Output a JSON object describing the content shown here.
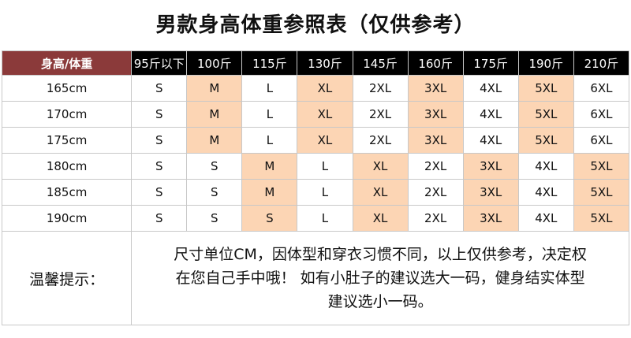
{
  "title": "男款身高体重参照表（仅供参考）",
  "table": {
    "header": [
      "身高/体重",
      "95斤以下",
      "100斤",
      "115斤",
      "130斤",
      "145斤",
      "160斤",
      "175斤",
      "190斤",
      "210斤"
    ],
    "rows": [
      [
        "165cm",
        "S",
        "M",
        "L",
        "XL",
        "2XL",
        "3XL",
        "4XL",
        "5XL",
        "6XL"
      ],
      [
        "170cm",
        "S",
        "M",
        "L",
        "XL",
        "2XL",
        "3XL",
        "4XL",
        "5XL",
        "6XL"
      ],
      [
        "175cm",
        "S",
        "M",
        "L",
        "XL",
        "2XL",
        "3XL",
        "4XL",
        "5XL",
        "6XL"
      ],
      [
        "180cm",
        "S",
        "S",
        "M",
        "L",
        "XL",
        "2XL",
        "3XL",
        "4XL",
        "5XL"
      ],
      [
        "185cm",
        "S",
        "S",
        "M",
        "L",
        "XL",
        "2XL",
        "3XL",
        "4XL",
        "5XL"
      ],
      [
        "190cm",
        "S",
        "S",
        "S",
        "L",
        "XL",
        "2XL",
        "3XL",
        "4XL",
        "5XL"
      ]
    ]
  },
  "note": {
    "label": "温馨提示：",
    "lines": [
      "尺寸单位CM，因体型和穿衣习惯不同，以上仅供参考，决定权",
      "在您自己手中哦！ 如有小肚子的建议选大一码，健身结实体型",
      "建议选小一码。"
    ]
  }
}
